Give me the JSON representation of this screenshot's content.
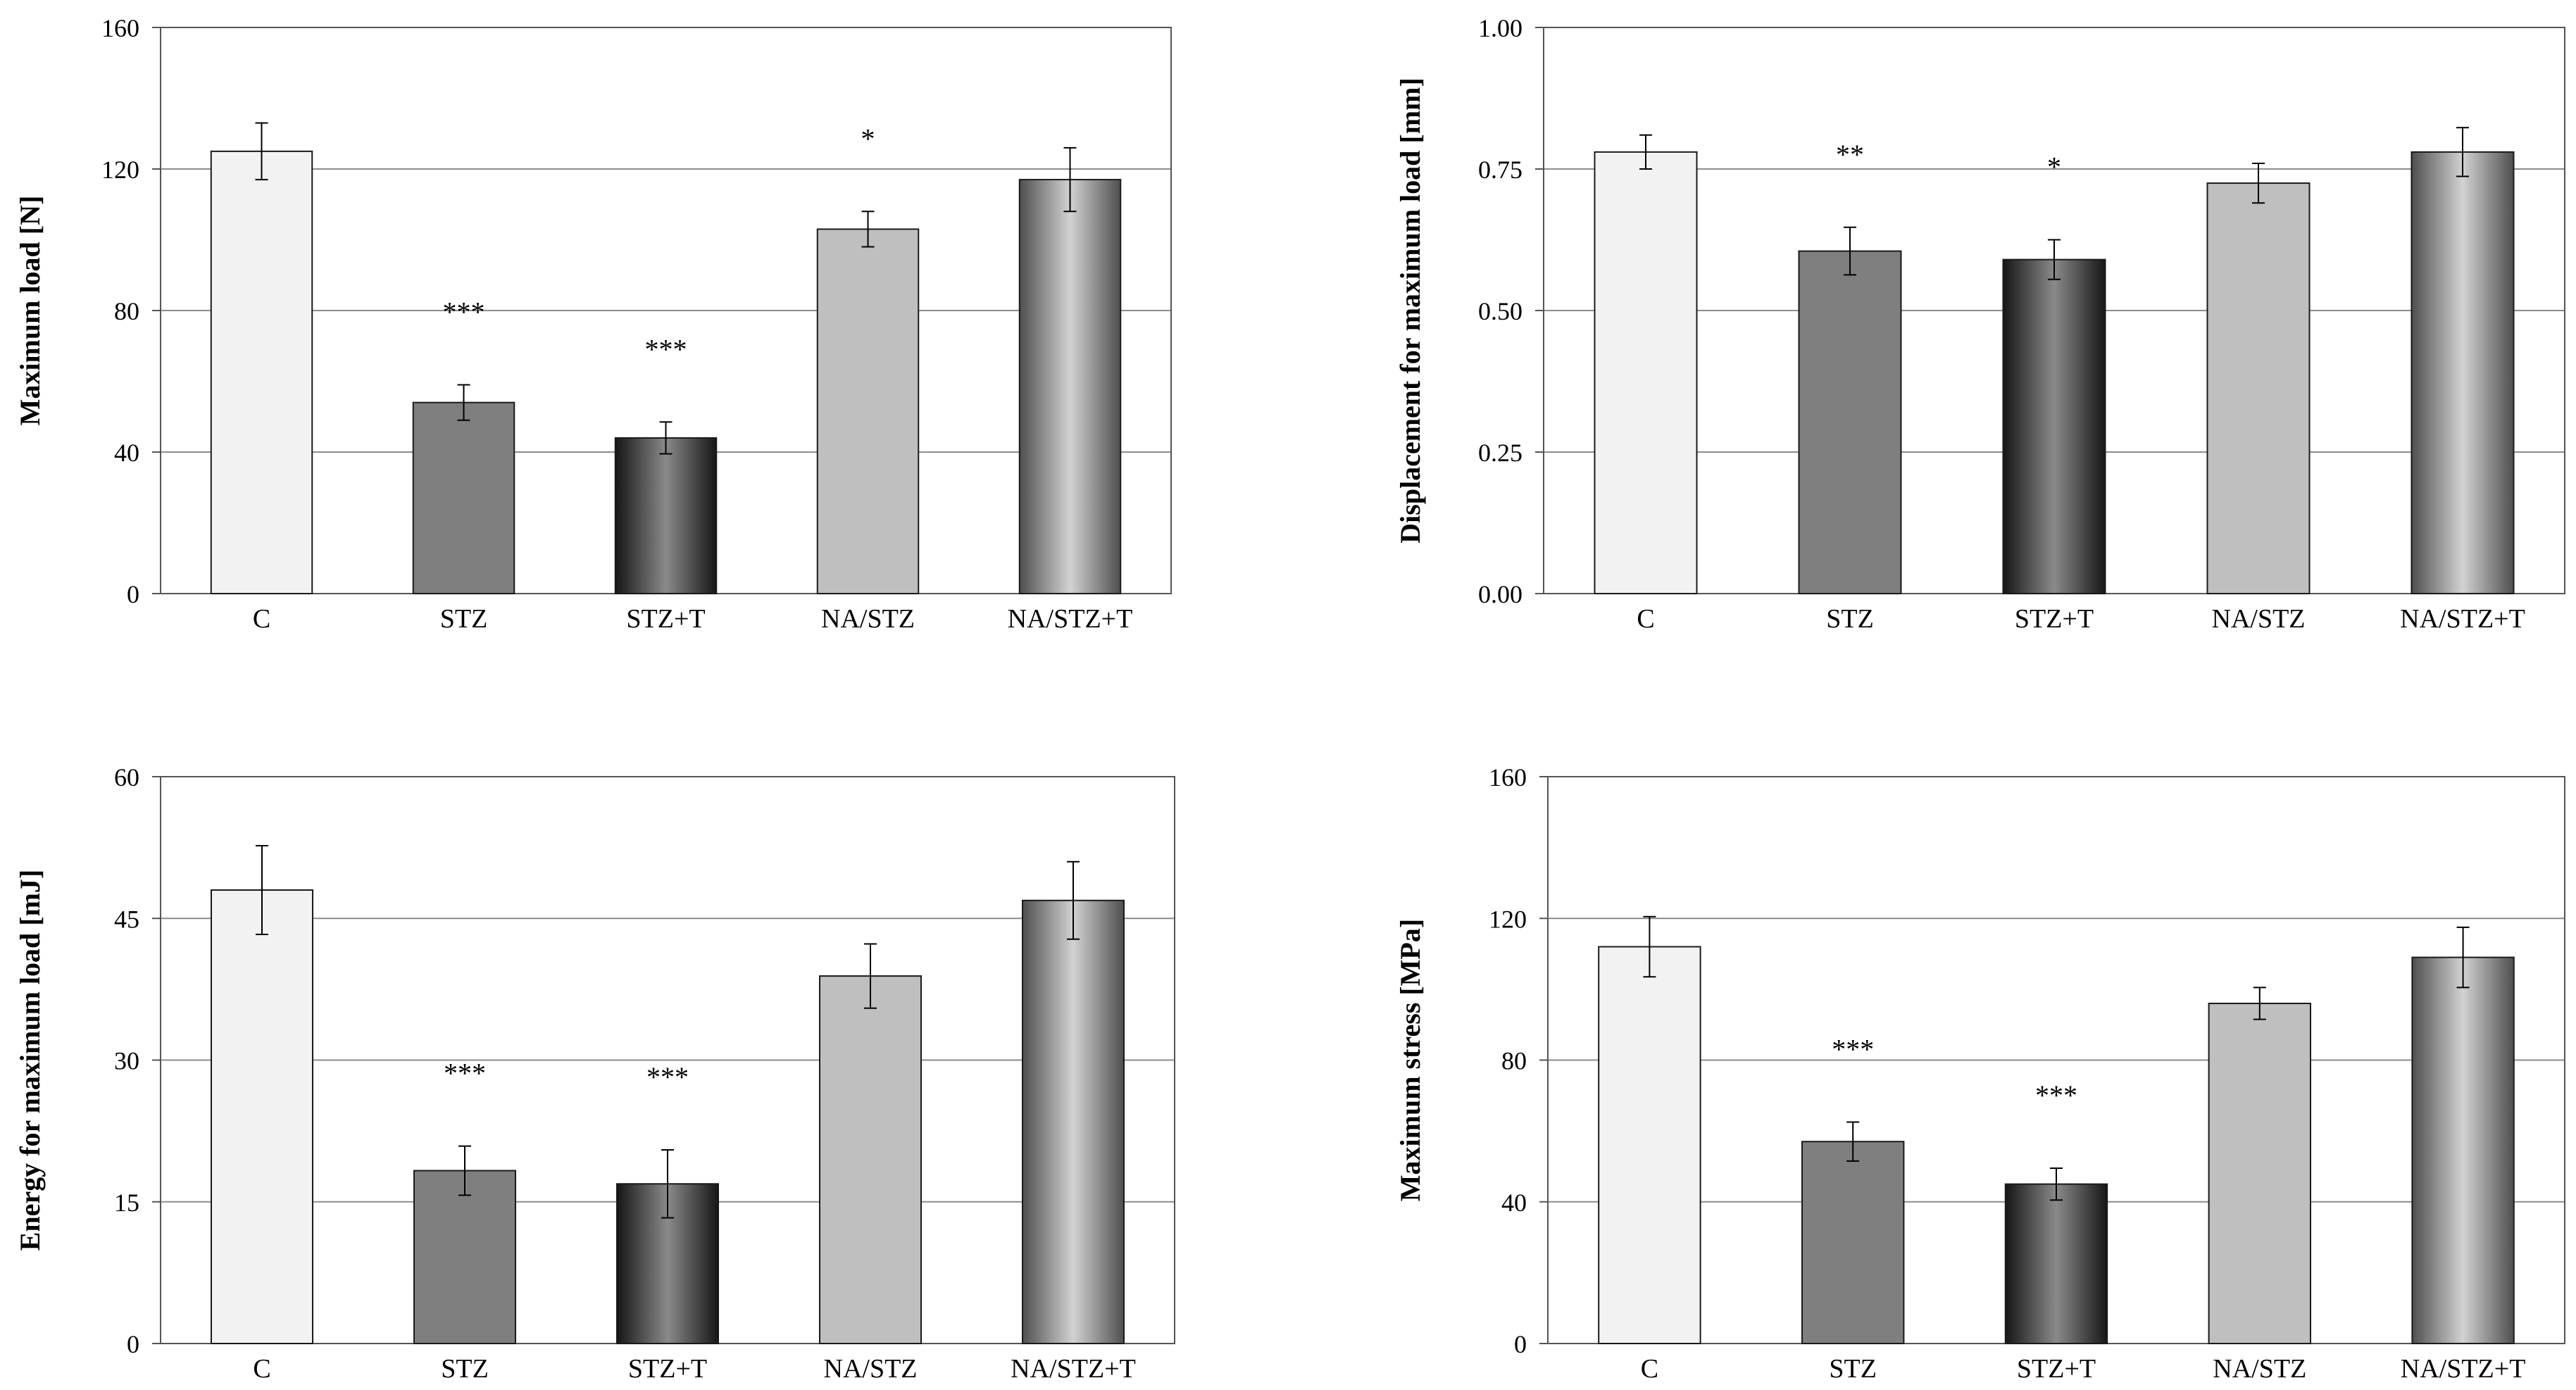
{
  "chart_data": [
    {
      "type": "bar",
      "panel": "top-left",
      "ylabel": "Maximum  load [N]",
      "categories": [
        "C",
        "STZ",
        "STZ+T",
        "NA/STZ",
        "NA/STZ+T"
      ],
      "values": [
        125,
        54,
        44,
        103,
        117
      ],
      "errors": [
        8,
        5,
        4.5,
        5,
        9
      ],
      "significance": [
        "",
        "***",
        "***",
        "*",
        ""
      ],
      "ylim": [
        0,
        160
      ],
      "yticks": [
        0,
        40,
        80,
        120,
        160
      ],
      "ytick_labels": [
        "0",
        "40",
        "80",
        "120",
        "160"
      ],
      "grid": true
    },
    {
      "type": "bar",
      "panel": "top-right",
      "ylabel": "Displacement  for maximum load [mm]",
      "categories": [
        "C",
        "STZ",
        "STZ+T",
        "NA/STZ",
        "NA/STZ+T"
      ],
      "values": [
        0.78,
        0.605,
        0.59,
        0.725,
        0.78
      ],
      "errors": [
        0.03,
        0.042,
        0.035,
        0.035,
        0.043
      ],
      "significance": [
        "",
        "**",
        "*",
        "",
        ""
      ],
      "ylim": [
        0,
        1
      ],
      "yticks": [
        0,
        0.25,
        0.5,
        0.75,
        1
      ],
      "ytick_labels": [
        "0.00",
        "0.25",
        "0.50",
        "0.75",
        "1.00"
      ],
      "grid": true
    },
    {
      "type": "bar",
      "panel": "bottom-left",
      "ylabel": "Energy for maximum load [mJ]",
      "categories": [
        "C",
        "STZ",
        "STZ+T",
        "NA/STZ",
        "NA/STZ+T"
      ],
      "values": [
        48,
        18.3,
        16.9,
        38.9,
        46.9
      ],
      "errors": [
        4.7,
        2.6,
        3.6,
        3.4,
        4.1
      ],
      "significance": [
        "",
        "***",
        "***",
        "",
        ""
      ],
      "ylim": [
        0,
        60
      ],
      "yticks": [
        0,
        15,
        30,
        45,
        60
      ],
      "ytick_labels": [
        "0",
        "15",
        "30",
        "45",
        "60"
      ],
      "grid": true
    },
    {
      "type": "bar",
      "panel": "bottom-right",
      "ylabel": "Maximum  stress [MPa]",
      "categories": [
        "C",
        "STZ",
        "STZ+T",
        "NA/STZ",
        "NA/STZ+T"
      ],
      "values": [
        112,
        57,
        45,
        96,
        109
      ],
      "errors": [
        8.5,
        5.5,
        4.5,
        4.5,
        8.5
      ],
      "significance": [
        "",
        "***",
        "***",
        "",
        ""
      ],
      "ylim": [
        0,
        160
      ],
      "yticks": [
        0,
        40,
        80,
        120,
        160
      ],
      "ytick_labels": [
        "0",
        "40",
        "80",
        "120",
        "160"
      ],
      "grid": true
    }
  ]
}
